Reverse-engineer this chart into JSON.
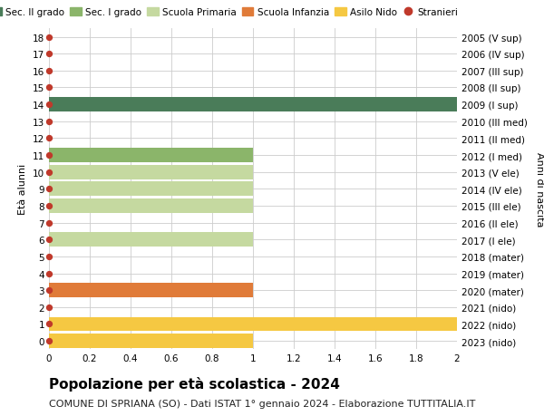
{
  "ages": [
    0,
    1,
    2,
    3,
    4,
    5,
    6,
    7,
    8,
    9,
    10,
    11,
    12,
    13,
    14,
    15,
    16,
    17,
    18
  ],
  "right_labels": [
    "2023 (nido)",
    "2022 (nido)",
    "2021 (nido)",
    "2020 (mater)",
    "2019 (mater)",
    "2018 (mater)",
    "2017 (I ele)",
    "2016 (II ele)",
    "2015 (III ele)",
    "2014 (IV ele)",
    "2013 (V ele)",
    "2012 (I med)",
    "2011 (II med)",
    "2010 (III med)",
    "2009 (I sup)",
    "2008 (II sup)",
    "2007 (III sup)",
    "2006 (IV sup)",
    "2005 (V sup)"
  ],
  "bars": [
    {
      "age": 0,
      "value": 1.0,
      "color": "#F5C842"
    },
    {
      "age": 1,
      "value": 2.0,
      "color": "#F5C842"
    },
    {
      "age": 3,
      "value": 1.0,
      "color": "#E07B39"
    },
    {
      "age": 6,
      "value": 1.0,
      "color": "#C5D9A0"
    },
    {
      "age": 8,
      "value": 1.0,
      "color": "#C5D9A0"
    },
    {
      "age": 9,
      "value": 1.0,
      "color": "#C5D9A0"
    },
    {
      "age": 10,
      "value": 1.0,
      "color": "#C5D9A0"
    },
    {
      "age": 11,
      "value": 1.0,
      "color": "#8BB56A"
    },
    {
      "age": 14,
      "value": 2.0,
      "color": "#4A7C59"
    }
  ],
  "dot_color": "#C0392B",
  "dot_size": 18,
  "xlim": [
    0,
    2.0
  ],
  "xticks": [
    0,
    0.2,
    0.4,
    0.6,
    0.8,
    1.0,
    1.2,
    1.4,
    1.6,
    1.8,
    2.0
  ],
  "ylim": [
    -0.5,
    18.5
  ],
  "yticks": [
    0,
    1,
    2,
    3,
    4,
    5,
    6,
    7,
    8,
    9,
    10,
    11,
    12,
    13,
    14,
    15,
    16,
    17,
    18
  ],
  "bar_height": 0.85,
  "grid_color": "#CCCCCC",
  "bg_color": "#FFFFFF",
  "legend_items": [
    {
      "label": "Sec. II grado",
      "color": "#4A7C59",
      "marker": false
    },
    {
      "label": "Sec. I grado",
      "color": "#8BB56A",
      "marker": false
    },
    {
      "label": "Scuola Primaria",
      "color": "#C5D9A0",
      "marker": false
    },
    {
      "label": "Scuola Infanzia",
      "color": "#E07B39",
      "marker": false
    },
    {
      "label": "Asilo Nido",
      "color": "#F5C842",
      "marker": false
    },
    {
      "label": "Stranieri",
      "color": "#C0392B",
      "marker": true
    }
  ],
  "ylabel_left": "Età alunni",
  "ylabel_right": "Anni di nascita",
  "title": "Popolazione per età scolastica - 2024",
  "subtitle": "COMUNE DI SPRIANA (SO) - Dati ISTAT 1° gennaio 2024 - Elaborazione TUTTITALIA.IT",
  "title_fontsize": 11,
  "subtitle_fontsize": 8,
  "ylabel_fontsize": 8,
  "tick_fontsize": 7.5,
  "legend_fontsize": 7.5
}
